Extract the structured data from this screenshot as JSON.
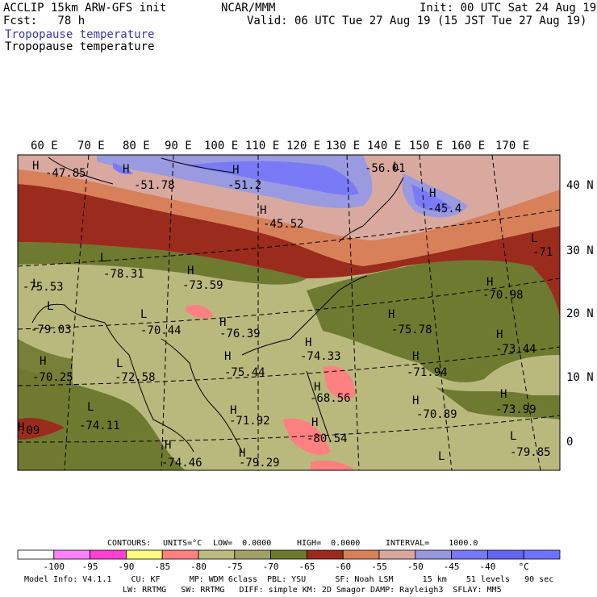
{
  "header": {
    "model": "ACCLIP 15km ARW-GFS init",
    "fcst": "Fcst:   78 h",
    "org": "NCAR/MMM",
    "init": "Init: 00 UTC Sat 24 Aug 19",
    "valid": "Valid: 06 UTC Tue 27 Aug 19 (15 JST Tue 27 Aug 19)",
    "field1": "Tropopause temperature",
    "field2": "Tropopause temperature",
    "field1_color": "#3a3aa0",
    "field2_color": "#000000"
  },
  "map": {
    "lon_labels": [
      "60 E",
      "70 E",
      "80 E",
      "90 E",
      "100 E",
      "110 E",
      "120 E",
      "130 E",
      "140 E",
      "150 E",
      "160 E",
      "170 E"
    ],
    "lat_labels": [
      "40 N",
      "30 N",
      "20 N",
      "10 N",
      "0"
    ],
    "markers": [
      {
        "type": "H",
        "value": "-47.85"
      },
      {
        "type": "H",
        "value": "-51.78"
      },
      {
        "type": "H",
        "value": "-51.2"
      },
      {
        "type": "L",
        "value": "-56.01"
      },
      {
        "type": "H",
        "value": "-45.52"
      },
      {
        "type": "H",
        "value": "-45.4"
      },
      {
        "type": "L",
        "value": "-71"
      },
      {
        "type": "L",
        "value": "-78.31"
      },
      {
        "type": "L",
        "value": "-75.53"
      },
      {
        "type": "H",
        "value": "-73.59"
      },
      {
        "type": "L",
        "value": "-79.03"
      },
      {
        "type": "L",
        "value": "-70.44"
      },
      {
        "type": "H",
        "value": "-76.39"
      },
      {
        "type": "H",
        "value": "-70.98"
      },
      {
        "type": "H",
        "value": "-75.78"
      },
      {
        "type": "H",
        "value": "-73.44"
      },
      {
        "type": "H",
        "value": "-74.33"
      },
      {
        "type": "H",
        "value": "-70.25"
      },
      {
        "type": "L",
        "value": "-72.58"
      },
      {
        "type": "H",
        "value": "-75.44"
      },
      {
        "type": "H",
        "value": "-71.94"
      },
      {
        "type": "H",
        "value": "-68.56"
      },
      {
        "type": "H",
        "value": "-73.99"
      },
      {
        "type": "H",
        "value": "-70.89"
      },
      {
        "type": "L",
        "value": "-74.11"
      },
      {
        "type": "H",
        "value": "-71.92"
      },
      {
        "type": "H",
        "value": "-80.54"
      },
      {
        "type": "L",
        "value": "-79.85"
      },
      {
        "type": "H",
        "value": ".09"
      },
      {
        "type": "H",
        "value": "-74.46"
      },
      {
        "type": "H",
        "value": "-79.29"
      },
      {
        "type": "L",
        "value": ""
      }
    ]
  },
  "contour_info": {
    "contours": "CONTOURS:",
    "units": "UNITS=°C",
    "low": "LOW=  0.0000",
    "high": "HIGH=  0.0000",
    "interval": "INTERVAL=    1000.0"
  },
  "colorbar": {
    "colors": [
      "#ffffff",
      "#ff80ff",
      "#ff40d0",
      "#ffff80",
      "#ff8080",
      "#bcbc80",
      "#a0a068",
      "#6e7a30",
      "#9a2a1c",
      "#d8805a",
      "#d8a8a0",
      "#9898e0",
      "#7878f8",
      "#6464f0",
      "#7070ff"
    ],
    "ticks": [
      "-100",
      "-95",
      "-90",
      "-85",
      "-80",
      "-75",
      "-70",
      "-65",
      "-60",
      "-55",
      "-50",
      "-45",
      "-40",
      "°C"
    ]
  },
  "footer": {
    "line1": "Model Info: V4.1.1    CU: KF      MP: WDM 6class  PBL: YSU      SF: Noah LSM      15 km    51 levels   90 sec",
    "line2": "LW: RRTMG   SW: RRTMG   DIFF: simple KM: 2D Smagor DAMP: Rayleigh3  SFLAY: MM5"
  },
  "colors": {
    "light_olive": "#b9b97e",
    "dark_olive": "#6f7a31",
    "dark_red": "#9b2b1d",
    "orange": "#d8805a",
    "pink": "#d9a9a0",
    "lavender": "#9a9ae0",
    "blue": "#7a7af6",
    "salmon": "#ff8080"
  }
}
